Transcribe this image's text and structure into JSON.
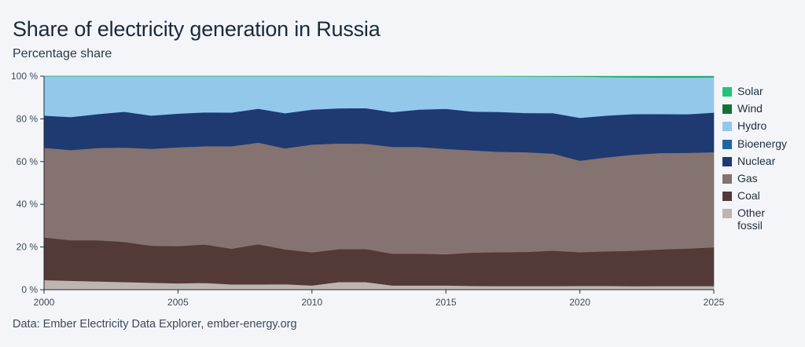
{
  "title": "Share of electricity generation in Russia",
  "subtitle": "Percentage share",
  "source": "Data: Ember Electricity Data Explorer, ember-energy.org",
  "chart_data": {
    "type": "area",
    "stacked": true,
    "x": [
      2000,
      2001,
      2002,
      2003,
      2004,
      2005,
      2006,
      2007,
      2008,
      2009,
      2010,
      2011,
      2012,
      2013,
      2014,
      2015,
      2016,
      2017,
      2018,
      2019,
      2020,
      2021,
      2022,
      2023,
      2024,
      2025
    ],
    "xlim": [
      2000,
      2025
    ],
    "x_ticks": [
      2000,
      2005,
      2010,
      2015,
      2020,
      2025
    ],
    "ylim": [
      0,
      100
    ],
    "y_ticks": [
      0,
      20,
      40,
      60,
      80,
      100
    ],
    "y_tick_suffix": "%",
    "grid": false,
    "legend_position": "right",
    "series": [
      {
        "name": "Other fossil",
        "color": "#bdb5b0",
        "values": [
          4.5,
          4.2,
          3.9,
          3.6,
          3.3,
          3.0,
          3.2,
          2.5,
          2.5,
          2.6,
          2.0,
          3.6,
          3.6,
          2.0,
          2.0,
          2.0,
          1.8,
          1.7,
          1.7,
          1.7,
          1.8,
          1.8,
          1.7,
          1.7,
          1.7,
          1.7
        ]
      },
      {
        "name": "Coal",
        "color": "#543a36",
        "values": [
          20.0,
          19.0,
          19.3,
          18.8,
          17.3,
          17.4,
          18.0,
          16.7,
          18.8,
          16.3,
          15.5,
          15.4,
          15.5,
          14.9,
          14.9,
          14.6,
          15.6,
          15.9,
          16.0,
          16.6,
          15.8,
          16.2,
          16.6,
          17.2,
          17.6,
          18.2
        ]
      },
      {
        "name": "Gas",
        "color": "#847371",
        "values": [
          42.0,
          42.2,
          43.2,
          44.2,
          45.4,
          46.3,
          46.0,
          48.0,
          47.6,
          47.3,
          50.5,
          49.5,
          49.3,
          50.0,
          50.0,
          49.4,
          47.9,
          47.1,
          46.7,
          45.5,
          42.9,
          44.1,
          45.1,
          45.2,
          44.9,
          44.6
        ]
      },
      {
        "name": "Nuclear",
        "color": "#1f3a70",
        "values": [
          15.0,
          15.4,
          15.8,
          16.7,
          15.5,
          15.7,
          15.8,
          15.7,
          15.8,
          16.4,
          16.3,
          16.4,
          16.6,
          16.2,
          17.4,
          18.7,
          18.1,
          18.6,
          18.3,
          18.9,
          20.0,
          19.5,
          19.0,
          18.2,
          18.0,
          18.5
        ]
      },
      {
        "name": "Bioenergy",
        "color": "#1f65a2",
        "values": [
          0.1,
          0.1,
          0.1,
          0.1,
          0.1,
          0.1,
          0.1,
          0.1,
          0.1,
          0.1,
          0.1,
          0.1,
          0.1,
          0.1,
          0.1,
          0.1,
          0.1,
          0.1,
          0.1,
          0.1,
          0.1,
          0.1,
          0.1,
          0.1,
          0.1,
          0.1
        ]
      },
      {
        "name": "Hydro",
        "color": "#94c8ea",
        "values": [
          18.4,
          19.1,
          17.7,
          16.6,
          18.4,
          17.5,
          16.9,
          17.0,
          15.2,
          17.3,
          15.6,
          15.0,
          14.9,
          16.8,
          15.6,
          15.2,
          16.5,
          16.7,
          17.1,
          17.1,
          19.3,
          18.1,
          17.3,
          17.2,
          17.3,
          16.6
        ]
      },
      {
        "name": "Wind",
        "color": "#127235",
        "values": [
          0,
          0,
          0,
          0,
          0,
          0,
          0,
          0,
          0,
          0,
          0,
          0,
          0,
          0,
          0,
          0,
          0,
          0,
          0,
          0.05,
          0.1,
          0.2,
          0.3,
          0.35,
          0.35,
          0.3
        ]
      },
      {
        "name": "Solar",
        "color": "#22c578",
        "values": [
          0,
          0,
          0,
          0,
          0,
          0,
          0,
          0,
          0,
          0,
          0,
          0,
          0,
          0,
          0,
          0.05,
          0.05,
          0.05,
          0.1,
          0.1,
          0.1,
          0.15,
          0.15,
          0.15,
          0.15,
          0.15
        ]
      }
    ],
    "legend_order": [
      "Solar",
      "Wind",
      "Hydro",
      "Bioenergy",
      "Nuclear",
      "Gas",
      "Coal",
      "Other fossil"
    ]
  }
}
